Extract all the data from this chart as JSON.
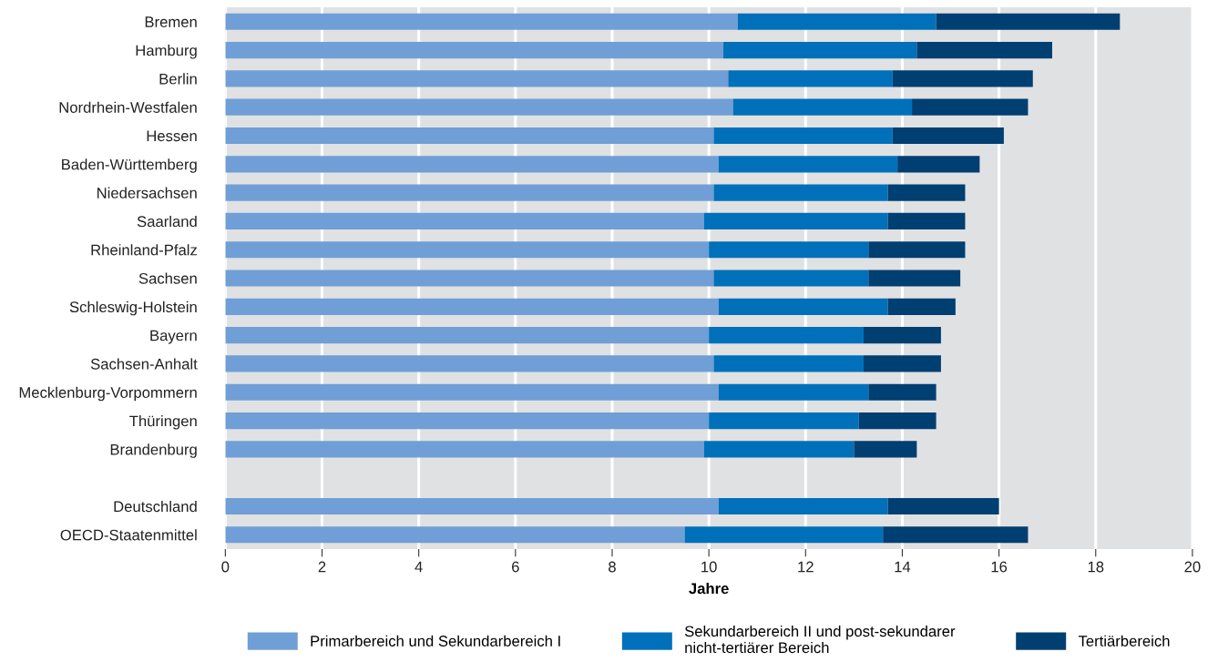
{
  "chart_data": {
    "type": "bar",
    "orientation": "horizontal",
    "stacked": true,
    "xlabel": "Jahre",
    "categories": [
      "Bremen",
      "Hamburg",
      "Berlin",
      "Nordrhein-Westfalen",
      "Hessen",
      "Baden-Württemberg",
      "Niedersachsen",
      "Saarland",
      "Rheinland-Pfalz",
      "Sachsen",
      "Schleswig-Holstein",
      "Bayern",
      "Sachsen-Anhalt",
      "Mecklenburg-Vorpommern",
      "Thüringen",
      "Brandenburg",
      null,
      "Deutschland",
      "OECD-Staatenmittel"
    ],
    "series": [
      {
        "name": "Primarbereich und Sekundarbereich I",
        "color": "#6f9fd6",
        "values": [
          10.6,
          10.3,
          10.4,
          10.5,
          10.1,
          10.2,
          10.1,
          9.9,
          10.0,
          10.1,
          10.2,
          10.0,
          10.1,
          10.2,
          10.0,
          9.9,
          null,
          10.2,
          9.5
        ]
      },
      {
        "name": "Sekundarbereich II und post-sekundarer\nnicht-tertiärer Bereich",
        "color": "#0070ba",
        "values": [
          4.1,
          4.0,
          3.4,
          3.7,
          3.7,
          3.7,
          3.6,
          3.8,
          3.3,
          3.2,
          3.5,
          3.2,
          3.1,
          3.1,
          3.1,
          3.1,
          null,
          3.5,
          4.1
        ]
      },
      {
        "name": "Tertiärbereich",
        "color": "#003f72",
        "values": [
          3.8,
          2.8,
          2.9,
          2.4,
          2.3,
          1.7,
          1.6,
          1.6,
          2.0,
          1.9,
          1.4,
          1.6,
          1.6,
          1.4,
          1.6,
          1.3,
          null,
          2.3,
          3.0
        ]
      }
    ],
    "xlim": [
      0,
      20
    ],
    "xticks": [
      0,
      2,
      4,
      6,
      8,
      10,
      12,
      14,
      16,
      18,
      20
    ],
    "grid": "x",
    "legend": "bottom"
  }
}
